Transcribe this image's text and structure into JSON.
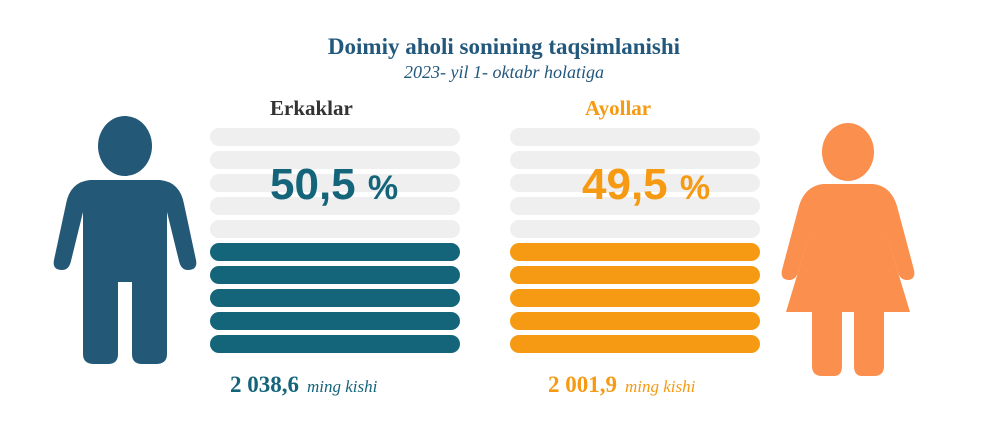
{
  "header": {
    "title": "Doimiy aholi sonining taqsimlanishi",
    "subtitle": "2023- yil 1- oktabr holatiga"
  },
  "chart_data": {
    "type": "bar",
    "title": "Doimiy aholi sonining taqsimlanishi",
    "subtitle": "2023- yil 1- oktabr holatiga",
    "categories": [
      "Erkaklar",
      "Ayollar"
    ],
    "values": [
      50.5,
      49.5
    ],
    "unit": "%",
    "percent_labels": [
      "50,5",
      "49,5"
    ],
    "percent_sign": "%",
    "counts": [
      "2 038,6",
      "2 001,9"
    ],
    "count_unit": "ming kishi",
    "colors": {
      "men": "#14647a",
      "men_icon": "#235876",
      "women": "#f59a12",
      "women_icon": "#fb8f4d",
      "empty": "#efefef"
    }
  }
}
